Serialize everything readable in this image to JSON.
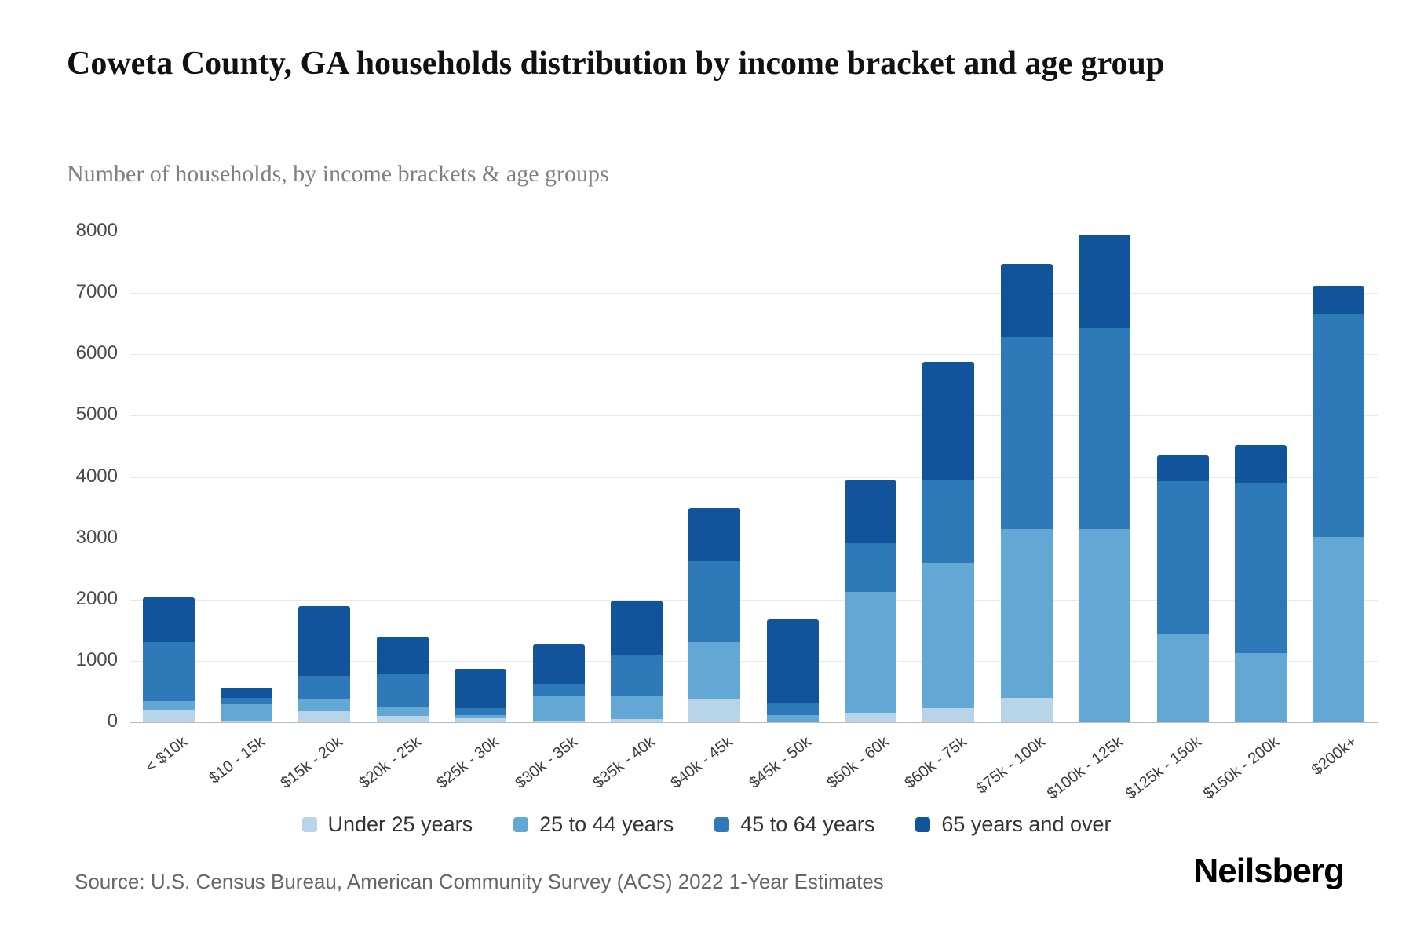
{
  "header": {
    "title": "Coweta County, GA households distribution by income bracket and age group",
    "subtitle": "Number of households, by income brackets & age groups"
  },
  "chart_data": {
    "type": "bar",
    "stacked": true,
    "title": "Coweta County, GA households distribution by income bracket and age group",
    "xlabel": "",
    "ylabel": "Number of households",
    "ylim": [
      0,
      8000
    ],
    "yticks": [
      0,
      1000,
      2000,
      3000,
      4000,
      5000,
      6000,
      7000,
      8000
    ],
    "grid": true,
    "legend_position": "bottom",
    "categories": [
      "< $10k",
      "$10 - 15k",
      "$15k - 20k",
      "$20k - 25k",
      "$25k - 30k",
      "$30k - 35k",
      "$35k - 40k",
      "$40k - 45k",
      "$45k - 50k",
      "$50k - 60k",
      "$60k - 75k",
      "$75k - 100k",
      "$100k - 125k",
      "$125k - 150k",
      "$150k - 200k",
      "$200k+"
    ],
    "series": [
      {
        "name": "Under 25 years",
        "color": "#b8d4e8",
        "values": [
          200,
          30,
          180,
          100,
          60,
          30,
          50,
          380,
          0,
          150,
          230,
          400,
          0,
          0,
          0,
          0
        ]
      },
      {
        "name": "25 to 44 years",
        "color": "#63a8d4",
        "values": [
          150,
          270,
          200,
          150,
          60,
          400,
          370,
          920,
          120,
          1970,
          2370,
          2750,
          3150,
          1430,
          1130,
          3020
        ]
      },
      {
        "name": "45 to 64 years",
        "color": "#2e7ab8",
        "values": [
          950,
          100,
          380,
          530,
          110,
          200,
          680,
          1320,
          200,
          800,
          1360,
          3130,
          3270,
          2500,
          2780,
          3630
        ]
      },
      {
        "name": "65 years and over",
        "color": "#11549b",
        "values": [
          730,
          160,
          1130,
          610,
          640,
          640,
          880,
          880,
          1360,
          1020,
          1910,
          1190,
          1530,
          420,
          610,
          470
        ]
      }
    ]
  },
  "footer": {
    "source": "Source: U.S. Census Bureau, American Community Survey (ACS) 2022 1-Year Estimates",
    "brand": "Neilsberg"
  }
}
